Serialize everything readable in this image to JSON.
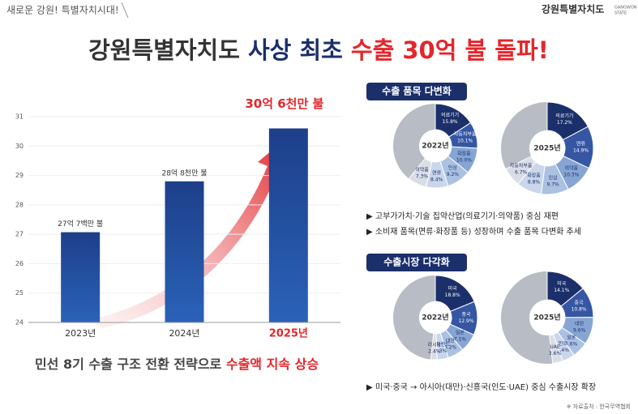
{
  "header": {
    "slogan": "새로운 강원! 특별자치시대!",
    "logo": "강원특별자치도",
    "logo_sub": [
      "GANGWON",
      "STATE"
    ]
  },
  "title": [
    "강원특별자치도 ",
    "사상 최초 ",
    "수출 30억 불 돌파!"
  ],
  "caption": [
    "민선 8기 수출 구조 전환 전략으로 ",
    "수출액 지속 상승"
  ],
  "sections": [
    {
      "title": "수출 품목 다변화",
      "bullets": [
        "고부가가치·기술 집약산업(의료기기·의약품) 중심 재편",
        "소비재 품목(면류·화장품 등) 성장하며 수출 품목 다변화 추세"
      ]
    },
    {
      "title": "수출시장 다각화",
      "bullets": [
        "미국·중국 → 아시아(대만)·신흥국(인도·UAE) 중심 수출시장 확장"
      ]
    }
  ],
  "source": "※ 자료출처 : 한국무역협회",
  "chart_data": [
    {
      "type": "bar",
      "categories": [
        "2023년",
        "2024년",
        "2025년"
      ],
      "values": [
        27.07,
        28.8,
        30.6
      ],
      "value_labels": [
        "27억 7백만 불",
        "28억 8천만 불",
        "30억 6천만 불"
      ],
      "color": "#1d3f8a",
      "ylim": [
        24,
        31
      ],
      "yticks": [
        24,
        25,
        26,
        27,
        28,
        29,
        30,
        31
      ],
      "grid": true
    },
    {
      "type": "donut",
      "title": "2022년",
      "categories": [
        "의료기기",
        "자동차부품",
        "화장품",
        "인삼",
        "면류",
        "의약품"
      ],
      "values": [
        15.8,
        10.1,
        10.0,
        9.2,
        8.4,
        7.3
      ],
      "value_labels": [
        "15.8%",
        "10.1%",
        "10.0%",
        "9.2%",
        "8.4%",
        "7.3%"
      ],
      "colors": [
        "#1b2f6b",
        "#3556a3",
        "#86a5d3",
        "#abc1e2",
        "#c9d6eb",
        "#d9dee6"
      ]
    },
    {
      "type": "donut",
      "title": "2025년",
      "categories": [
        "의료기기",
        "면류",
        "의약품",
        "인삼",
        "화장품",
        "자동차부품"
      ],
      "values": [
        17.2,
        14.9,
        10.3,
        9.7,
        8.8,
        6.7
      ],
      "value_labels": [
        "17.2%",
        "14.9%",
        "10.3%",
        "9.7%",
        "8.8%",
        "6.7%"
      ],
      "colors": [
        "#1b2f6b",
        "#3556a3",
        "#86a5d3",
        "#abc1e2",
        "#c9d6eb",
        "#d9dee6"
      ]
    },
    {
      "type": "donut",
      "title": "2022년",
      "categories": [
        "미국",
        "중국",
        "일본",
        "대만",
        "네덜란드",
        "러시아"
      ],
      "values": [
        18.8,
        12.9,
        7.1,
        6.2,
        4.3,
        2.4
      ],
      "value_labels": [
        "18.8%",
        "12.9%",
        "7.1%",
        "6.2%",
        "4.3%",
        "2.4%"
      ],
      "colors": [
        "#1b2f6b",
        "#3556a3",
        "#86a5d3",
        "#abc1e2",
        "#c9d6eb",
        "#d9dee6"
      ]
    },
    {
      "type": "donut",
      "title": "2025년",
      "categories": [
        "미국",
        "중국",
        "대만",
        "일본",
        "인도",
        "UAE"
      ],
      "values": [
        14.1,
        10.8,
        9.6,
        5.6,
        4.4,
        3.6
      ],
      "value_labels": [
        "14.1%",
        "10.8%",
        "9.6%",
        "5.6%",
        "4.4%",
        "3.6%"
      ],
      "colors": [
        "#1b2f6b",
        "#3556a3",
        "#86a5d3",
        "#abc1e2",
        "#c9d6eb",
        "#d9dee6"
      ]
    }
  ]
}
